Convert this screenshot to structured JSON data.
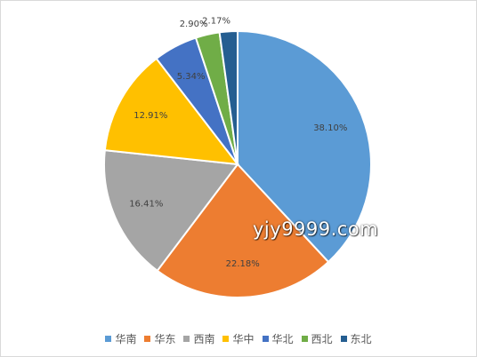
{
  "chart_data": {
    "type": "pie",
    "title": "",
    "legend_position": "bottom",
    "slices": [
      {
        "label": "华南",
        "value": 38.1,
        "display": "38.10%",
        "color": "#5b9bd5"
      },
      {
        "label": "华东",
        "value": 22.18,
        "display": "22.18%",
        "color": "#ed7d31"
      },
      {
        "label": "西南",
        "value": 16.41,
        "display": "16.41%",
        "color": "#a5a5a5"
      },
      {
        "label": "华中",
        "value": 12.91,
        "display": "12.91%",
        "color": "#ffc000"
      },
      {
        "label": "华北",
        "value": 5.34,
        "display": "5.34%",
        "color": "#4472c4"
      },
      {
        "label": "西北",
        "value": 2.9,
        "display": "2.90%",
        "color": "#70ad47"
      },
      {
        "label": "东北",
        "value": 2.17,
        "display": "2.17%",
        "color": "#255e91"
      }
    ]
  },
  "watermark": "yjy9999.com"
}
